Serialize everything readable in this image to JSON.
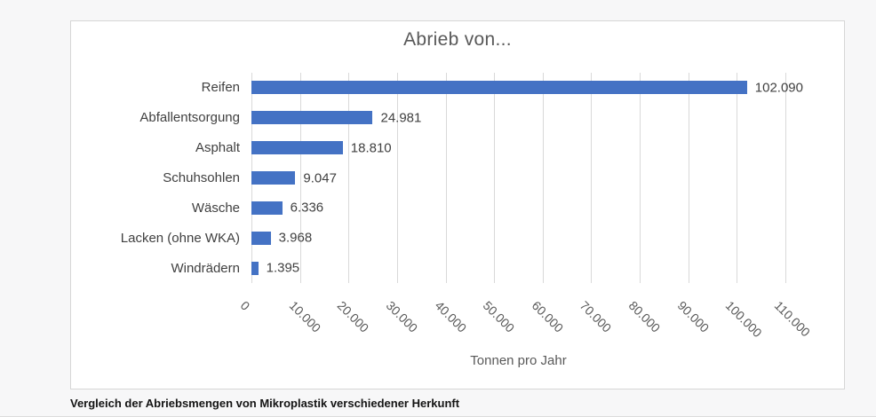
{
  "page": {
    "caption": "Vergleich der Abriebsmengen von Mikroplastik verschiedener Herkunft"
  },
  "colors": {
    "bar": "#4472C4",
    "gridline": "#D9D9D9",
    "title_text": "#595959",
    "tick_text": "#595959",
    "label_text": "#404040",
    "page_background": "#F7F7F8",
    "chart_background": "#FFFFFF",
    "chart_border": "#D6D6D6"
  },
  "chart_data": {
    "type": "bar",
    "orientation": "horizontal",
    "title": "Abrieb von...",
    "categories": [
      "Reifen",
      "Abfallentsorgung",
      "Asphalt",
      "Schuhsohlen",
      "Wäsche",
      "Lacken (ohne WKA)",
      "Windrädern"
    ],
    "values": [
      102090,
      24981,
      18810,
      9047,
      6336,
      3968,
      1395
    ],
    "value_labels": [
      "102.090",
      "24.981",
      "18.810",
      "9.047",
      "6.336",
      "3.968",
      "1.395"
    ],
    "xlabel": "Tonnen pro Jahr",
    "ylabel": "",
    "xlim": [
      0,
      110000
    ],
    "x_ticks": [
      0,
      10000,
      20000,
      30000,
      40000,
      50000,
      60000,
      70000,
      80000,
      90000,
      100000,
      110000
    ],
    "x_tick_labels": [
      "0",
      "10.000",
      "20.000",
      "30.000",
      "40.000",
      "50.000",
      "60.000",
      "70.000",
      "80.000",
      "90.000",
      "100.000",
      "110.000"
    ],
    "x_tick_rotation_deg": 45,
    "grid": true,
    "legend": "none",
    "bar_color": "#4472C4"
  }
}
